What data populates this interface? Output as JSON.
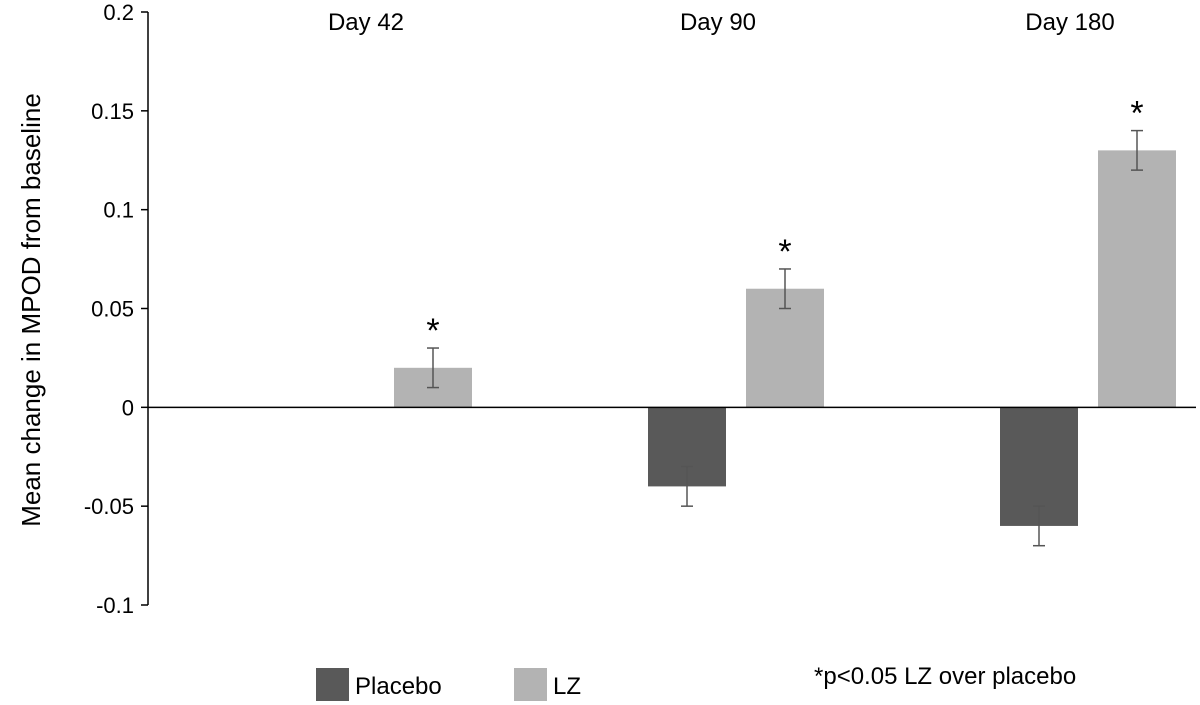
{
  "chart_data": {
    "type": "bar",
    "categories": [
      "Day 42",
      "Day 90",
      "Day 180"
    ],
    "series": [
      {
        "name": "Placebo",
        "values": [
          0,
          -0.04,
          -0.06
        ],
        "errors": [
          0,
          0.01,
          0.01
        ],
        "color": "#595959"
      },
      {
        "name": "LZ",
        "values": [
          0.02,
          0.06,
          0.13
        ],
        "errors": [
          0.01,
          0.01,
          0.01
        ],
        "color": "#b3b3b3"
      }
    ],
    "ylabel": "Mean change in MPOD from baseline",
    "ylim": [
      -0.1,
      0.2
    ],
    "yticks": [
      "0.2",
      "0.15",
      "0.1",
      "0.05",
      "0",
      "-0.05",
      "-0.1"
    ],
    "yticks_values": [
      0.2,
      0.15,
      0.1,
      0.05,
      0,
      -0.05,
      -0.1
    ],
    "significance_marker": "*",
    "significant_lz": [
      true,
      true,
      true
    ],
    "footnote": "*p<0.05 LZ over placebo",
    "legend_position": "bottom",
    "grid": false
  }
}
